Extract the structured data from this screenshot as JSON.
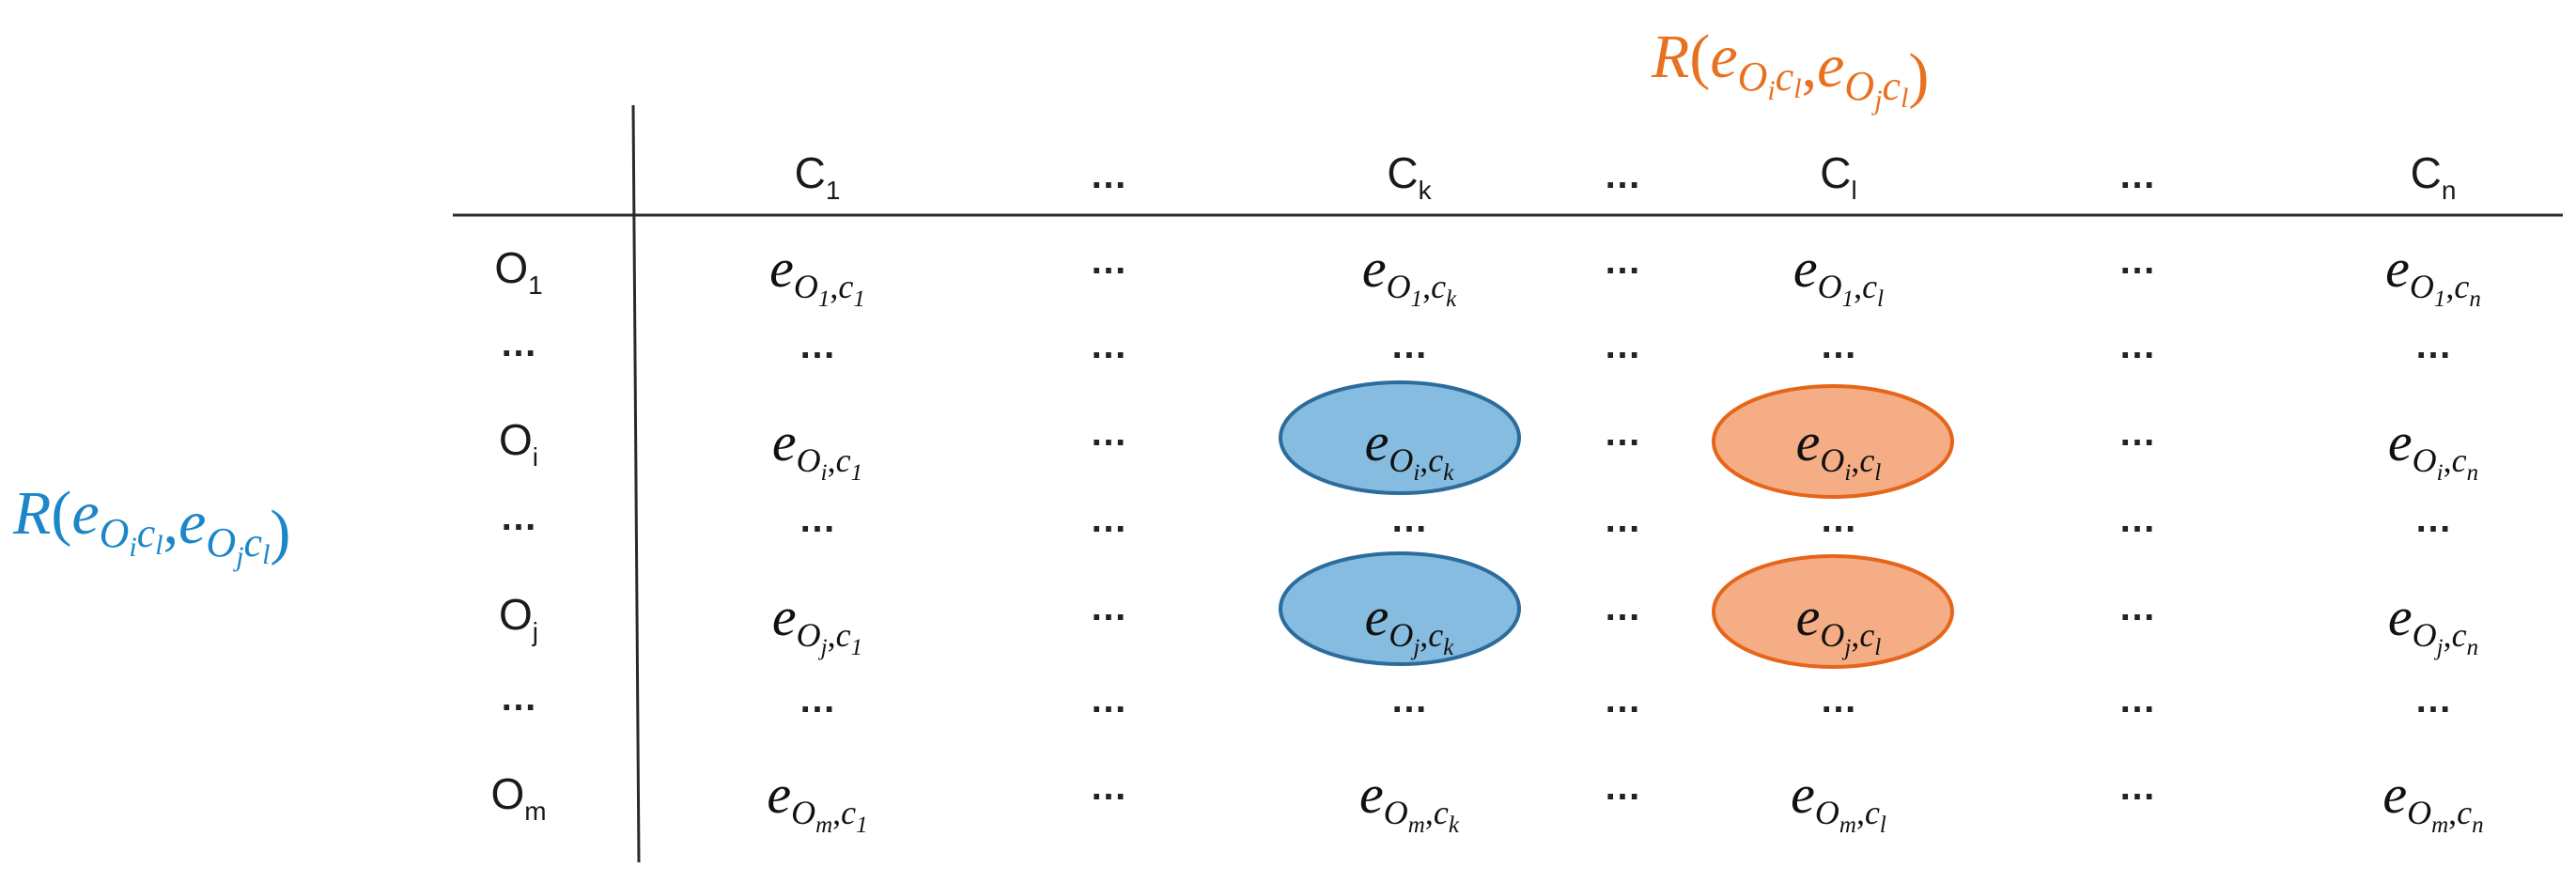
{
  "relation_top": {
    "label": "R(e_{O_i c_l}, e_{O_j c_l})",
    "color": "#E8711F",
    "R": "R",
    "open": "(",
    "e1": "e",
    "o1": "O",
    "i1": "i",
    "c1": "c",
    "l1": "l",
    "comma": ",",
    "e2": "e",
    "o2": "O",
    "j2": "j",
    "c2": "c",
    "l2": "l",
    "close": ")"
  },
  "relation_left": {
    "label": "R(e_{O_i c_l}, e_{O_j c_l})",
    "color": "#1B86C8",
    "R": "R",
    "open": "(",
    "e1": "e",
    "o1": "O",
    "i1": "i",
    "c1": "c",
    "l1": "l",
    "comma": ",",
    "e2": "e",
    "o2": "O",
    "j2": "j",
    "c2": "c",
    "l2": "l",
    "close": ")"
  },
  "columns": [
    {
      "base": "C",
      "sub": "1"
    },
    {
      "base": "…",
      "sub": ""
    },
    {
      "base": "C",
      "sub": "k"
    },
    {
      "base": "…",
      "sub": ""
    },
    {
      "base": "C",
      "sub": "l"
    },
    {
      "base": "…",
      "sub": ""
    },
    {
      "base": "C",
      "sub": "n"
    }
  ],
  "rows": [
    {
      "base": "O",
      "sub": "1"
    },
    {
      "base": "…",
      "sub": ""
    },
    {
      "base": "O",
      "sub": "i"
    },
    {
      "base": "…",
      "sub": ""
    },
    {
      "base": "O",
      "sub": "j"
    },
    {
      "base": "…",
      "sub": ""
    },
    {
      "base": "O",
      "sub": "m"
    }
  ],
  "cell_letter": "e",
  "ellipsis": "…",
  "highlight_colors": {
    "blue_fill": "#85BCE0",
    "blue_stroke": "#2C6C9C",
    "orange_fill": "#F4AD85",
    "orange_stroke": "#E5651A"
  }
}
